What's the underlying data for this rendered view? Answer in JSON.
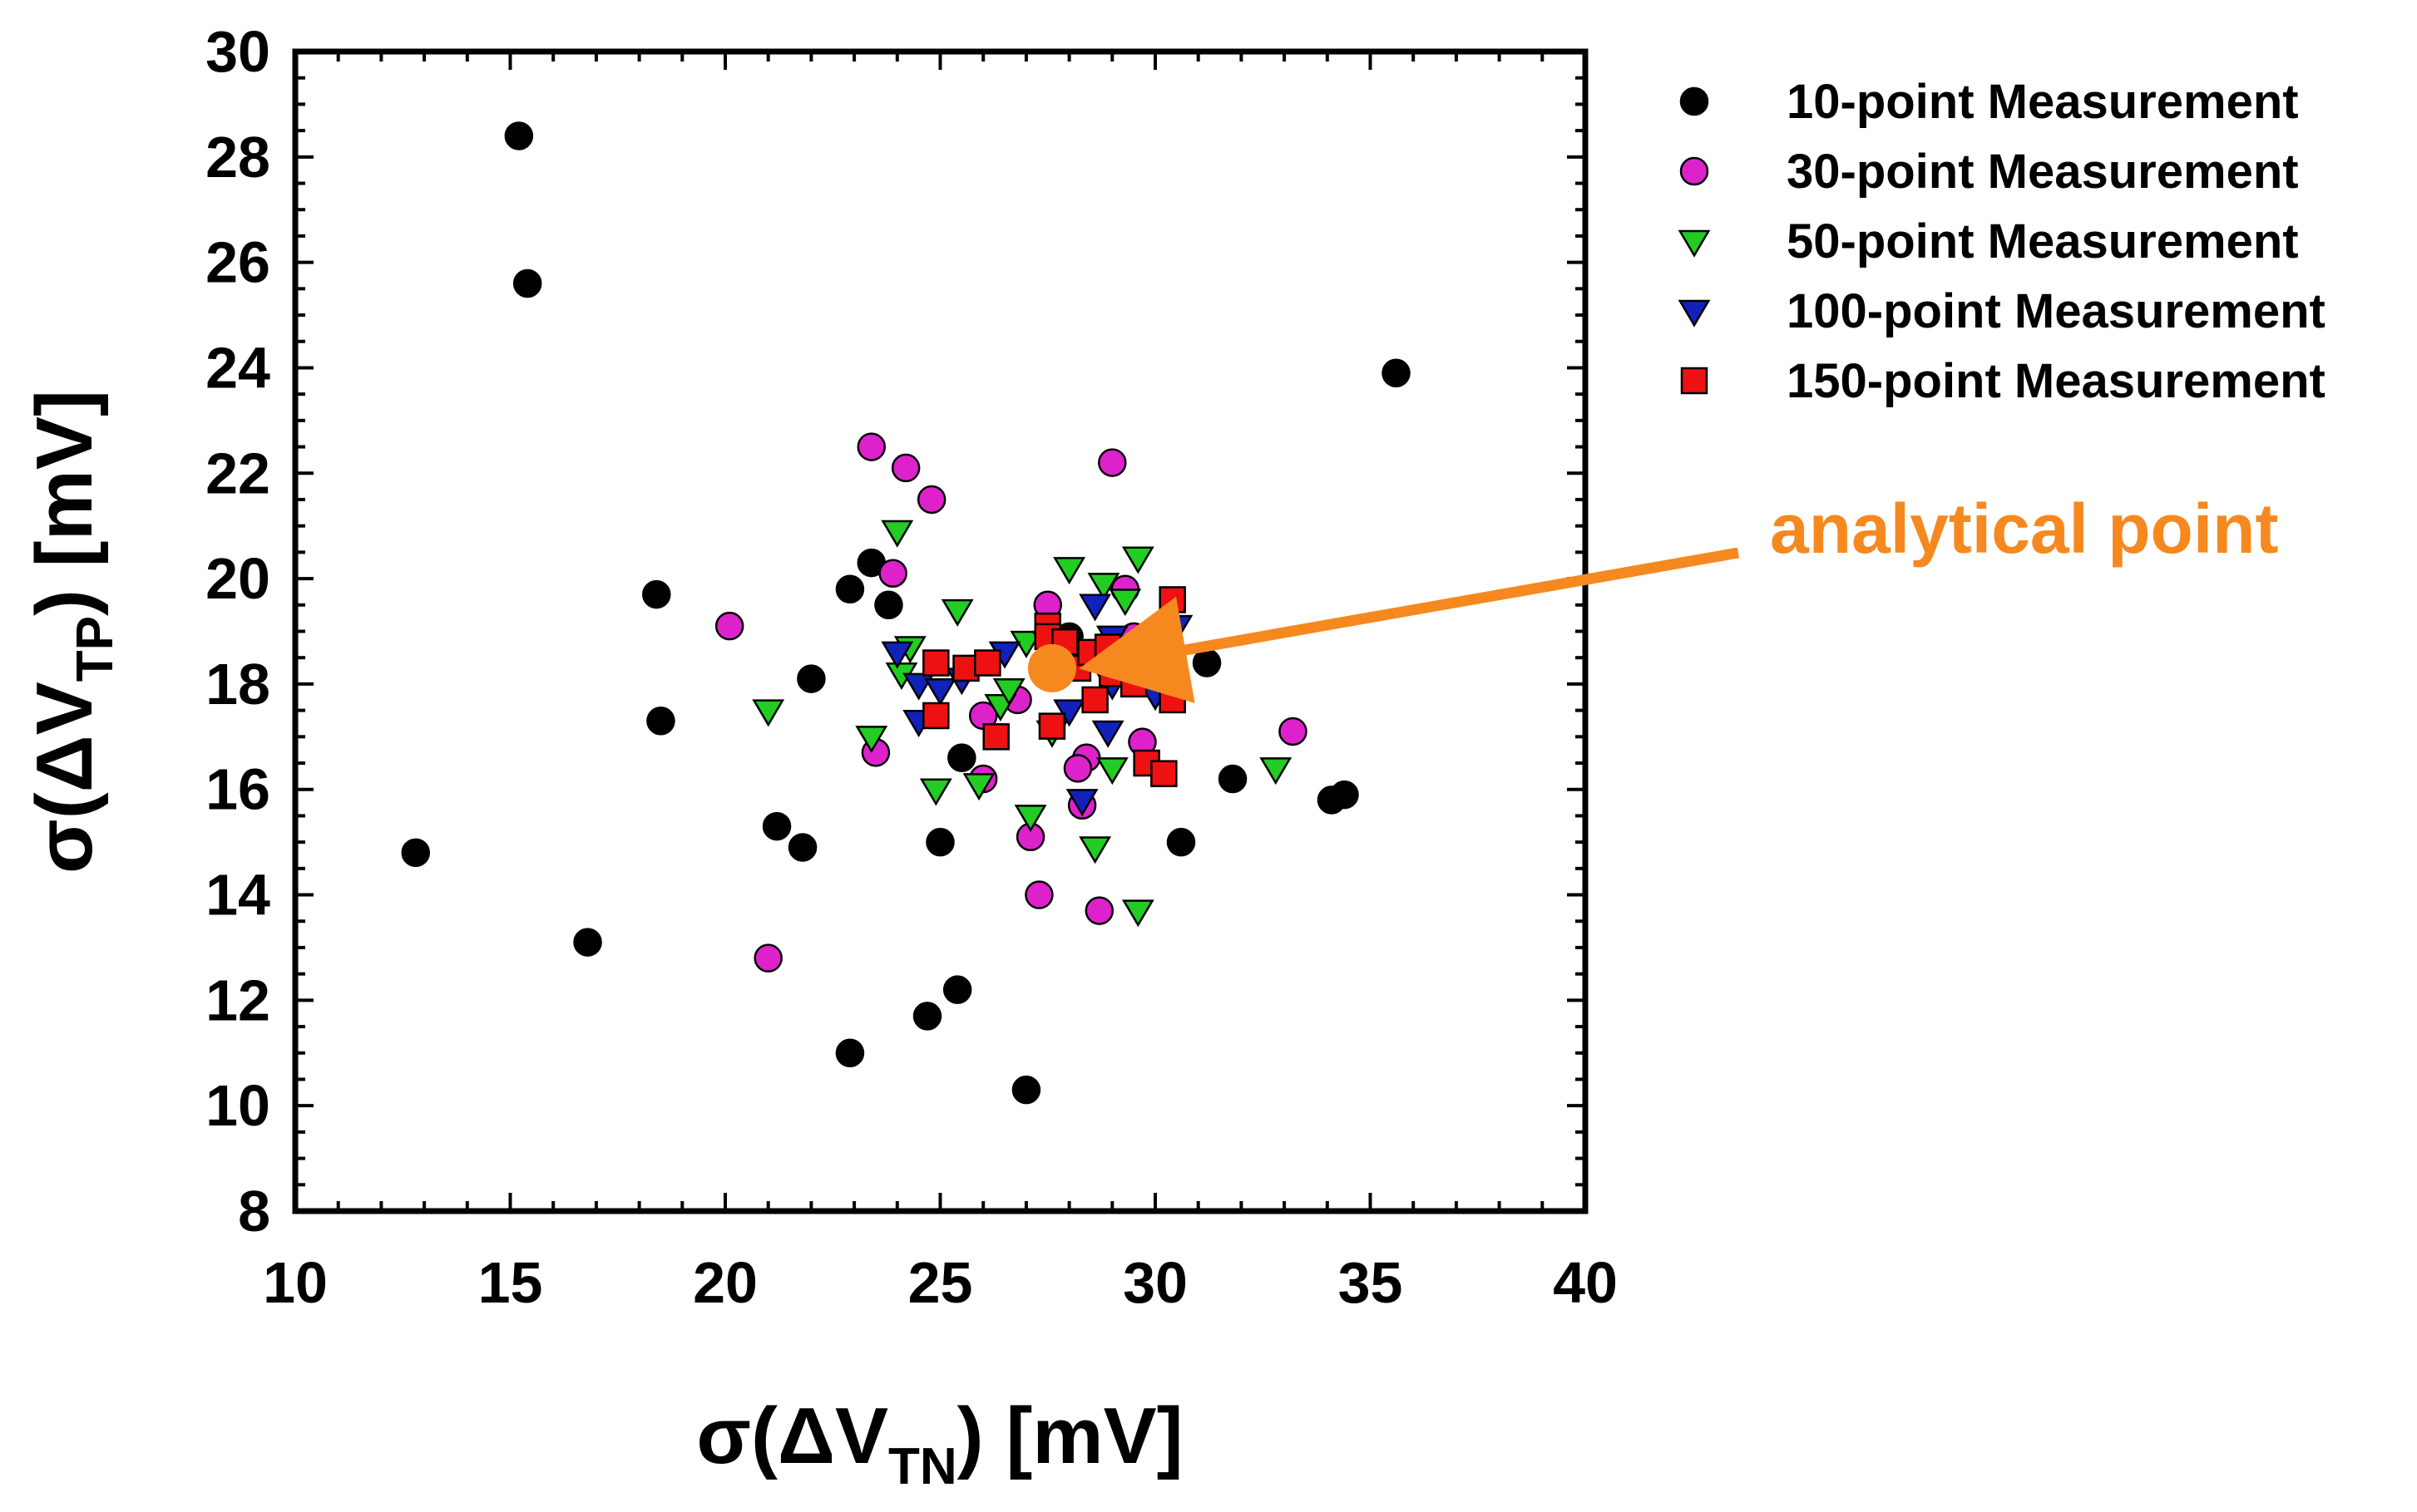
{
  "chart_data": {
    "type": "scatter",
    "title": "",
    "xlabel": {
      "prefix": "σ(ΔV",
      "sub": "TN",
      "suffix": ") [mV]"
    },
    "ylabel": {
      "prefix": "σ(ΔV",
      "sub": "TP",
      "suffix": ") [mV]"
    },
    "xlim": [
      10,
      40
    ],
    "ylim": [
      8,
      30
    ],
    "x_ticks": [
      10,
      15,
      20,
      25,
      30,
      35,
      40
    ],
    "y_ticks": [
      8,
      10,
      12,
      14,
      16,
      18,
      20,
      22,
      24,
      26,
      28,
      30
    ],
    "grid": false,
    "legend_position": "top-right, outside plot",
    "series": [
      {
        "name": "10-point Measurement",
        "marker": "circle",
        "color": "#000000",
        "points": [
          [
            15.2,
            28.4
          ],
          [
            15.4,
            25.6
          ],
          [
            12.8,
            14.8
          ],
          [
            16.8,
            13.1
          ],
          [
            18.4,
            19.7
          ],
          [
            18.5,
            17.3
          ],
          [
            21.2,
            15.3
          ],
          [
            21.8,
            14.9
          ],
          [
            22.0,
            18.1
          ],
          [
            22.9,
            11.0
          ],
          [
            22.9,
            19.8
          ],
          [
            23.4,
            20.3
          ],
          [
            23.8,
            19.5
          ],
          [
            24.7,
            11.7
          ],
          [
            25.0,
            15.0
          ],
          [
            25.4,
            12.2
          ],
          [
            25.5,
            16.6
          ],
          [
            27.0,
            10.3
          ],
          [
            30.6,
            15.0
          ],
          [
            31.2,
            18.4
          ],
          [
            31.8,
            16.2
          ],
          [
            34.1,
            15.8
          ],
          [
            34.4,
            15.9
          ],
          [
            35.6,
            23.9
          ],
          [
            28.0,
            18.9
          ]
        ]
      },
      {
        "name": "30-point Measurement",
        "marker": "circle",
        "color": "#dd22cc",
        "points": [
          [
            23.4,
            22.5
          ],
          [
            24.2,
            22.1
          ],
          [
            24.8,
            21.5
          ],
          [
            29.0,
            22.2
          ],
          [
            23.9,
            20.1
          ],
          [
            20.1,
            19.1
          ],
          [
            23.5,
            16.7
          ],
          [
            27.5,
            19.5
          ],
          [
            29.3,
            19.8
          ],
          [
            29.5,
            18.9
          ],
          [
            26.8,
            17.7
          ],
          [
            26.0,
            17.4
          ],
          [
            28.4,
            16.6
          ],
          [
            28.2,
            16.4
          ],
          [
            29.7,
            16.9
          ],
          [
            33.2,
            17.1
          ],
          [
            26.0,
            16.2
          ],
          [
            27.1,
            15.1
          ],
          [
            27.3,
            14.0
          ],
          [
            28.7,
            13.7
          ],
          [
            21.0,
            12.8
          ],
          [
            28.3,
            15.7
          ]
        ]
      },
      {
        "name": "50-point Measurement",
        "marker": "triangle-down",
        "color": "#22cc22",
        "points": [
          [
            24.0,
            20.9
          ],
          [
            24.1,
            18.2
          ],
          [
            24.3,
            18.7
          ],
          [
            25.4,
            19.4
          ],
          [
            25.9,
            16.1
          ],
          [
            24.9,
            16.0
          ],
          [
            23.4,
            17.0
          ],
          [
            21.0,
            17.5
          ],
          [
            26.4,
            17.6
          ],
          [
            26.6,
            17.9
          ],
          [
            27.0,
            18.8
          ],
          [
            28.0,
            20.2
          ],
          [
            28.8,
            19.9
          ],
          [
            29.3,
            19.6
          ],
          [
            29.6,
            20.4
          ],
          [
            27.1,
            15.5
          ],
          [
            28.6,
            14.9
          ],
          [
            29.0,
            16.4
          ],
          [
            29.6,
            13.7
          ],
          [
            30.1,
            18.3
          ],
          [
            32.8,
            16.4
          ],
          [
            27.6,
            17.1
          ]
        ]
      },
      {
        "name": "100-point Measurement",
        "marker": "triangle-down",
        "color": "#1122bb",
        "points": [
          [
            24.0,
            18.6
          ],
          [
            24.5,
            18.0
          ],
          [
            25.0,
            17.9
          ],
          [
            25.5,
            18.1
          ],
          [
            24.5,
            17.3
          ],
          [
            26.5,
            18.6
          ],
          [
            27.5,
            18.8
          ],
          [
            28.0,
            17.5
          ],
          [
            28.6,
            19.5
          ],
          [
            29.0,
            18.0
          ],
          [
            28.9,
            17.1
          ],
          [
            29.5,
            18.7
          ],
          [
            30.0,
            17.8
          ],
          [
            30.5,
            19.1
          ],
          [
            28.3,
            15.8
          ],
          [
            29.0,
            18.9
          ]
        ]
      },
      {
        "name": "150-point Measurement",
        "marker": "square",
        "color": "#ee1111",
        "points": [
          [
            24.9,
            18.4
          ],
          [
            25.6,
            18.3
          ],
          [
            26.1,
            18.4
          ],
          [
            24.9,
            17.4
          ],
          [
            26.3,
            17.0
          ],
          [
            27.5,
            19.1
          ],
          [
            27.5,
            18.9
          ],
          [
            28.2,
            18.3
          ],
          [
            28.5,
            18.6
          ],
          [
            29.0,
            18.2
          ],
          [
            29.5,
            18.0
          ],
          [
            30.4,
            19.6
          ],
          [
            30.4,
            17.7
          ],
          [
            28.6,
            17.7
          ],
          [
            27.6,
            17.2
          ],
          [
            29.8,
            16.5
          ],
          [
            30.2,
            16.3
          ],
          [
            28.9,
            18.7
          ],
          [
            27.9,
            18.8
          ]
        ]
      }
    ],
    "analytical_point": {
      "x": 27.6,
      "y": 18.3,
      "color": "#f5891f",
      "label": "analytical point"
    }
  }
}
